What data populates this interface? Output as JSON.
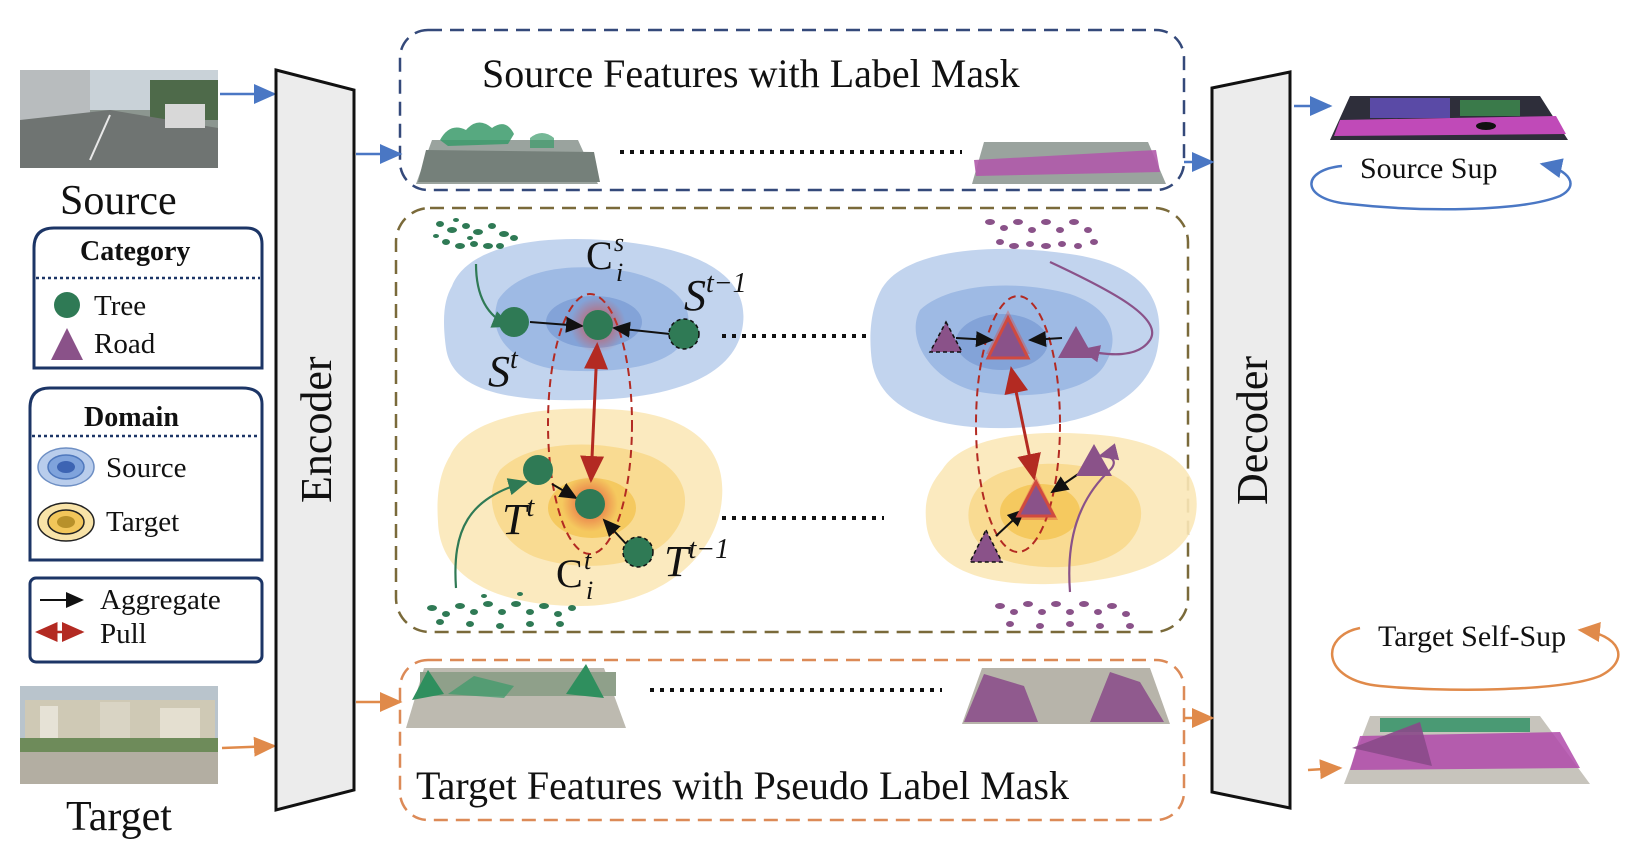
{
  "inputs": {
    "source_label": "Source",
    "target_label": "Target"
  },
  "panels": {
    "source_features_title": "Source Features with Label Mask",
    "target_features_title": "Target Features with Pseudo Label Mask"
  },
  "modules": {
    "encoder": "Encoder",
    "decoder": "Decoder"
  },
  "outputs": {
    "source_sup": "Source Sup",
    "target_self_sup": "Target Self-Sup"
  },
  "legend": {
    "category": {
      "title": "Category",
      "items": [
        "Tree",
        "Road"
      ]
    },
    "domain": {
      "title": "Domain",
      "items": [
        "Source",
        "Target"
      ]
    },
    "arrows": {
      "items": [
        "Aggregate",
        "Pull"
      ]
    }
  },
  "math": {
    "s_t": "S",
    "s_t_sup": "t",
    "s_t1": "S",
    "s_t1_sup": "t−1",
    "t_t": "T",
    "t_t_sup": "t",
    "t_t1": "T",
    "t_t1_sup": "t−1",
    "c_s": "C",
    "c_s_sup": "s",
    "c_s_sub": "i",
    "c_t": "C",
    "c_t_sup": "t",
    "c_t_sub": "i"
  },
  "colors": {
    "tree": "#2f7a55",
    "road": "#8a5289",
    "source_domain": "#8fb1dc",
    "target_domain": "#f6d27a",
    "pull": "#b32a22",
    "source_flow": "#4a77c4",
    "target_flow": "#e08a4a",
    "source_box": "#34497a",
    "target_box": "#dc8a57",
    "middle_box": "#7a6a3a"
  }
}
